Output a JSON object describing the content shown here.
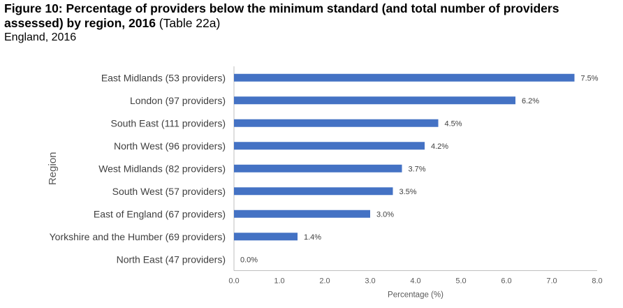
{
  "header": {
    "title_bold": "Figure 10: Percentage of providers below the minimum standard (and total number of providers assessed) by region, 2016",
    "title_ref": " (Table 22a)",
    "subtitle": "England, 2016"
  },
  "colors": {
    "bar": "#4472C4",
    "axis": "#BFBFBF"
  },
  "chart_data": {
    "type": "bar",
    "orientation": "horizontal",
    "categories": [
      "East Midlands (53 providers)",
      "London (97 providers)",
      "South East (111 providers)",
      "North West (96 providers)",
      "West Midlands (82 providers)",
      "South West (57 providers)",
      "East of England (67 providers)",
      "Yorkshire and the Humber (69 providers)",
      "North East (47 providers)"
    ],
    "values": [
      7.5,
      6.2,
      4.5,
      4.2,
      3.7,
      3.5,
      3.0,
      1.4,
      0.0
    ],
    "value_labels": [
      "7.5%",
      "6.2%",
      "4.5%",
      "4.2%",
      "3.7%",
      "3.5%",
      "3.0%",
      "1.4%",
      "0.0%"
    ],
    "xlim": [
      0,
      8
    ],
    "xticks": [
      "0.0",
      "1.0",
      "2.0",
      "3.0",
      "4.0",
      "5.0",
      "6.0",
      "7.0",
      "8.0"
    ],
    "xlabel": "Percentage (%)",
    "ylabel": "Region",
    "grid": false,
    "legend": "none"
  }
}
